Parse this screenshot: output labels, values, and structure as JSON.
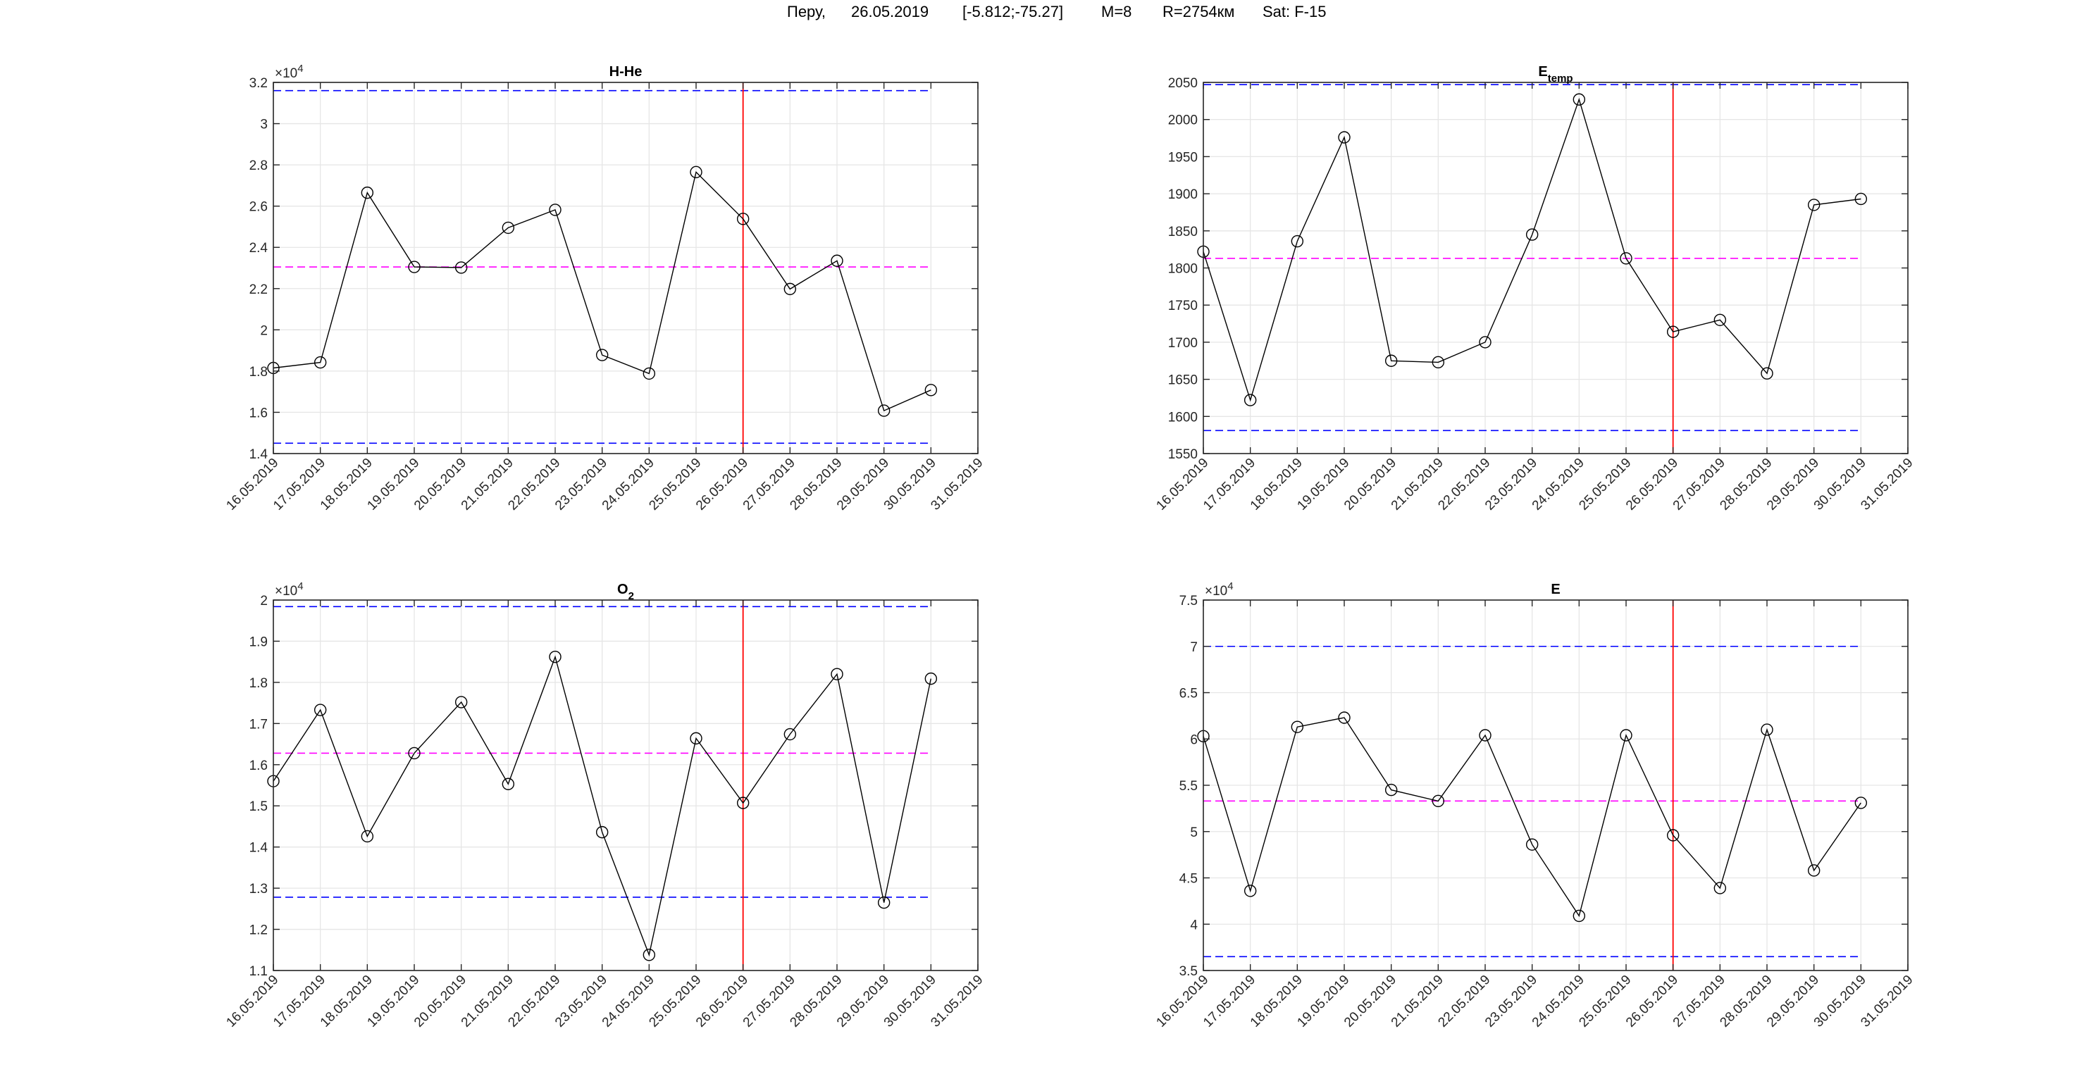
{
  "figure_title": {
    "location": "Перу,",
    "date": "26.05.2019",
    "coords": "[-5.812;-75.27]",
    "magnitude": "M=8",
    "radius": "R=2754км",
    "satellite": "Sat: F-15"
  },
  "colors": {
    "series": "#000000",
    "bound": "#0000ff",
    "mean": "#ff00ff",
    "event": "#ff0000",
    "grid": "#e6e6e6",
    "axis": "#262626"
  },
  "chart_data": [
    {
      "type": "line",
      "title": "H-He",
      "title_sub": "",
      "exponent": "4",
      "x": [
        "16.05.2019",
        "17.05.2019",
        "18.05.2019",
        "19.05.2019",
        "20.05.2019",
        "21.05.2019",
        "22.05.2019",
        "23.05.2019",
        "24.05.2019",
        "25.05.2019",
        "26.05.2019",
        "27.05.2019",
        "28.05.2019",
        "29.05.2019",
        "30.05.2019"
      ],
      "x_ticks": [
        "16.05.2019",
        "17.05.2019",
        "18.05.2019",
        "19.05.2019",
        "20.05.2019",
        "21.05.2019",
        "22.05.2019",
        "23.05.2019",
        "24.05.2019",
        "25.05.2019",
        "26.05.2019",
        "27.05.2019",
        "28.05.2019",
        "29.05.2019",
        "30.05.2019",
        "31.05.2019"
      ],
      "y": [
        18150,
        18420,
        26650,
        23050,
        23020,
        24950,
        25820,
        18780,
        17880,
        27650,
        25380,
        21980,
        23350,
        16080,
        17080
      ],
      "ylim": [
        14000,
        32000
      ],
      "y_ticks": [
        14000,
        16000,
        18000,
        20000,
        22000,
        24000,
        26000,
        28000,
        30000,
        32000
      ],
      "y_tick_labels": [
        "1.4",
        "1.6",
        "1.8",
        "2",
        "2.2",
        "2.4",
        "2.6",
        "2.8",
        "3",
        "3.2"
      ],
      "upper_bound": 31600,
      "mean": 23050,
      "lower_bound": 14500,
      "event_date": "26.05.2019",
      "grid": true
    },
    {
      "type": "line",
      "title": "E",
      "title_sub": "temp",
      "exponent": "",
      "x": [
        "16.05.2019",
        "17.05.2019",
        "18.05.2019",
        "19.05.2019",
        "20.05.2019",
        "21.05.2019",
        "22.05.2019",
        "23.05.2019",
        "24.05.2019",
        "25.05.2019",
        "26.05.2019",
        "27.05.2019",
        "28.05.2019",
        "29.05.2019",
        "30.05.2019"
      ],
      "x_ticks": [
        "16.05.2019",
        "17.05.2019",
        "18.05.2019",
        "19.05.2019",
        "20.05.2019",
        "21.05.2019",
        "22.05.2019",
        "23.05.2019",
        "24.05.2019",
        "25.05.2019",
        "26.05.2019",
        "27.05.2019",
        "28.05.2019",
        "29.05.2019",
        "30.05.2019",
        "31.05.2019"
      ],
      "y": [
        1822,
        1622,
        1836,
        1976,
        1675,
        1673,
        1700,
        1845,
        2027,
        1813,
        1714,
        1730,
        1658,
        1885,
        1893
      ],
      "ylim": [
        1550,
        2050
      ],
      "y_ticks": [
        1550,
        1600,
        1650,
        1700,
        1750,
        1800,
        1850,
        1900,
        1950,
        2000,
        2050
      ],
      "y_tick_labels": [
        "1550",
        "1600",
        "1650",
        "1700",
        "1750",
        "1800",
        "1850",
        "1900",
        "1950",
        "2000",
        "2050"
      ],
      "upper_bound": 2047,
      "mean": 1813,
      "lower_bound": 1581,
      "event_date": "26.05.2019",
      "grid": true
    },
    {
      "type": "line",
      "title": "O",
      "title_sub": "2",
      "exponent": "4",
      "x": [
        "16.05.2019",
        "17.05.2019",
        "18.05.2019",
        "19.05.2019",
        "20.05.2019",
        "21.05.2019",
        "22.05.2019",
        "23.05.2019",
        "24.05.2019",
        "25.05.2019",
        "26.05.2019",
        "27.05.2019",
        "28.05.2019",
        "29.05.2019",
        "30.05.2019"
      ],
      "x_ticks": [
        "16.05.2019",
        "17.05.2019",
        "18.05.2019",
        "19.05.2019",
        "20.05.2019",
        "21.05.2019",
        "22.05.2019",
        "23.05.2019",
        "24.05.2019",
        "25.05.2019",
        "26.05.2019",
        "27.05.2019",
        "28.05.2019",
        "29.05.2019",
        "30.05.2019",
        "31.05.2019"
      ],
      "y": [
        15600,
        17330,
        14260,
        16280,
        17520,
        15530,
        18620,
        14360,
        11380,
        16640,
        15070,
        16740,
        18200,
        12650,
        18090
      ],
      "ylim": [
        11000,
        20000
      ],
      "y_ticks": [
        11000,
        12000,
        13000,
        14000,
        15000,
        16000,
        17000,
        18000,
        19000,
        20000
      ],
      "y_tick_labels": [
        "1.1",
        "1.2",
        "1.3",
        "1.4",
        "1.5",
        "1.6",
        "1.7",
        "1.8",
        "1.9",
        "2"
      ],
      "upper_bound": 19840,
      "mean": 16280,
      "lower_bound": 12780,
      "event_date": "26.05.2019",
      "grid": true
    },
    {
      "type": "line",
      "title": "E",
      "title_sub": "",
      "exponent": "4",
      "x": [
        "16.05.2019",
        "17.05.2019",
        "18.05.2019",
        "19.05.2019",
        "20.05.2019",
        "21.05.2019",
        "22.05.2019",
        "23.05.2019",
        "24.05.2019",
        "25.05.2019",
        "26.05.2019",
        "27.05.2019",
        "28.05.2019",
        "29.05.2019",
        "30.05.2019"
      ],
      "x_ticks": [
        "16.05.2019",
        "17.05.2019",
        "18.05.2019",
        "19.05.2019",
        "20.05.2019",
        "21.05.2019",
        "22.05.2019",
        "23.05.2019",
        "24.05.2019",
        "25.05.2019",
        "26.05.2019",
        "27.05.2019",
        "28.05.2019",
        "29.05.2019",
        "30.05.2019",
        "31.05.2019"
      ],
      "y": [
        60300,
        43600,
        61300,
        62300,
        54500,
        53300,
        60400,
        48600,
        40900,
        60400,
        49600,
        43900,
        61000,
        45800,
        53100
      ],
      "ylim": [
        35000,
        75000
      ],
      "y_ticks": [
        35000,
        40000,
        45000,
        50000,
        55000,
        60000,
        65000,
        70000,
        75000
      ],
      "y_tick_labels": [
        "3.5",
        "4",
        "4.5",
        "5",
        "5.5",
        "6",
        "6.5",
        "7",
        "7.5"
      ],
      "upper_bound": 70000,
      "mean": 53300,
      "lower_bound": 36500,
      "event_date": "26.05.2019",
      "grid": true
    }
  ]
}
